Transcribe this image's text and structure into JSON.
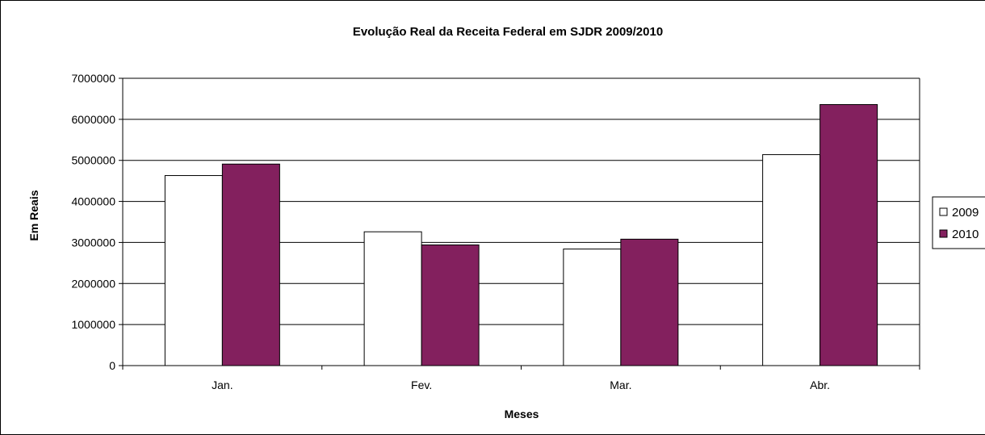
{
  "chart_data": {
    "type": "bar",
    "title": "Evolução Real da Receita Federal em SJDR 2009/2010",
    "xlabel": "Meses",
    "ylabel": "Em Reais",
    "categories": [
      "Jan.",
      "Fev.",
      "Mar.",
      "Abr."
    ],
    "series": [
      {
        "name": "2009",
        "color": "#ffffff",
        "values": [
          4630000,
          3260000,
          2840000,
          5140000
        ]
      },
      {
        "name": "2010",
        "color": "#83205e",
        "values": [
          4910000,
          2940000,
          3080000,
          6360000
        ]
      }
    ],
    "ylim": [
      0,
      7000000
    ],
    "yticks": [
      0,
      1000000,
      2000000,
      3000000,
      4000000,
      5000000,
      6000000,
      7000000
    ],
    "ytick_labels": [
      "0",
      "1000000",
      "2000000",
      "3000000",
      "4000000",
      "5000000",
      "6000000",
      "7000000"
    ],
    "grid": true,
    "legend_position": "right"
  }
}
